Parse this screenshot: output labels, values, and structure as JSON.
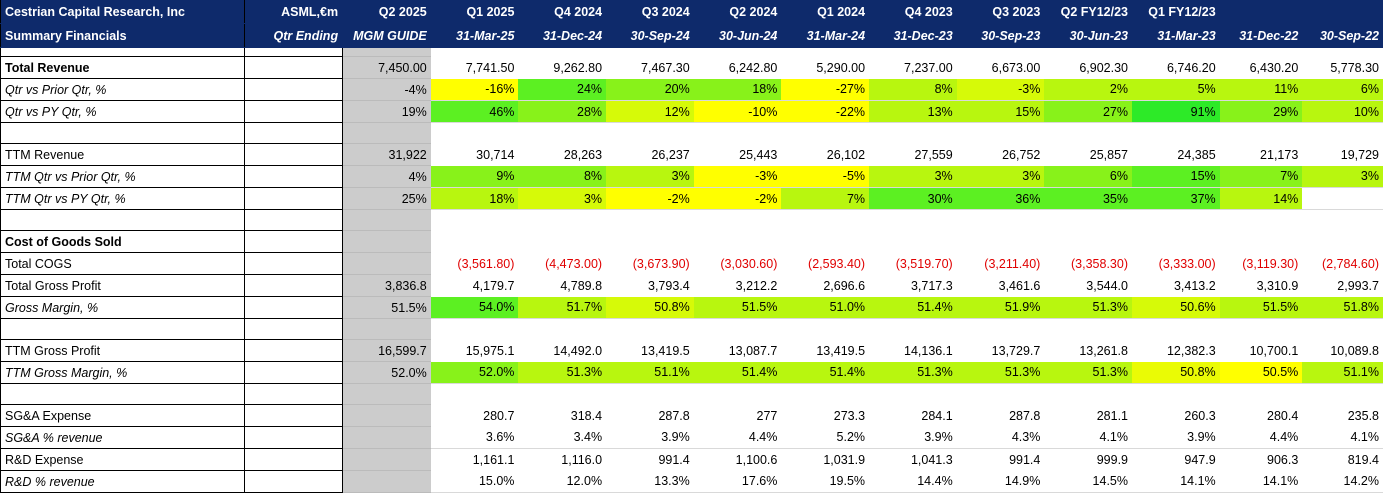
{
  "header": {
    "row1": [
      "Cestrian Capital Research, Inc",
      "ASML,€m",
      "Q2 2025",
      "Q1 2025",
      "Q4 2024",
      "Q3 2024",
      "Q2 2024",
      "Q1 2024",
      "Q4 2023",
      "Q3 2023",
      "Q2 FY12/23",
      "Q1 FY12/23",
      "",
      ""
    ],
    "row2": [
      "Summary Financials",
      "Qtr Ending",
      "MGM GUIDE",
      "31-Mar-25",
      "31-Dec-24",
      "30-Sep-24",
      "30-Jun-24",
      "31-Mar-24",
      "31-Dec-23",
      "30-Sep-23",
      "30-Jun-23",
      "31-Mar-23",
      "31-Dec-22",
      "30-Sep-22"
    ]
  },
  "rows": [
    {
      "label": "Total Revenue",
      "style": "b",
      "guide": "7,450.00",
      "values": [
        "7,741.50",
        "9,262.80",
        "7,467.30",
        "6,242.80",
        "5,290.00",
        "7,237.00",
        "6,673.00",
        "6,902.30",
        "6,746.20",
        "6,430.20",
        "5,778.30"
      ],
      "colors": []
    },
    {
      "label": "Qtr vs Prior Qtr, %",
      "style": "i",
      "guide": "-4%",
      "values": [
        "-16%",
        "24%",
        "20%",
        "18%",
        "-27%",
        "8%",
        "-3%",
        "2%",
        "5%",
        "11%",
        "6%"
      ],
      "colors": [
        "y",
        "g1",
        "g2",
        "g2",
        "y",
        "g3",
        "g4",
        "g3",
        "g3",
        "g3",
        "g3"
      ]
    },
    {
      "label": "Qtr vs PY Qtr, %",
      "style": "i",
      "guide": "19%",
      "values": [
        "46%",
        "28%",
        "12%",
        "-10%",
        "-22%",
        "13%",
        "15%",
        "27%",
        "91%",
        "29%",
        "10%"
      ],
      "colors": [
        "g1",
        "g2",
        "g4",
        "y",
        "y",
        "g3",
        "g3",
        "g2",
        "g0",
        "g2",
        "g3"
      ]
    },
    {
      "blank": true
    },
    {
      "label": " TTM Revenue",
      "style": "",
      "guide": "31,922",
      "values": [
        "30,714",
        "28,263",
        "26,237",
        "25,443",
        "26,102",
        "27,559",
        "26,752",
        "25,857",
        "24,385",
        "21,173",
        "19,729"
      ],
      "colors": []
    },
    {
      "label": "TTM Qtr vs Prior Qtr, %",
      "style": "i",
      "guide": "4%",
      "values": [
        "9%",
        "8%",
        "3%",
        "-3%",
        "-5%",
        "3%",
        "3%",
        "6%",
        "15%",
        "7%",
        "3%"
      ],
      "colors": [
        "g2",
        "g2",
        "g3",
        "y",
        "y",
        "g3",
        "g3",
        "g2",
        "g1",
        "g2",
        "g3"
      ]
    },
    {
      "label": "TTM Qtr vs PY Qtr, %",
      "style": "i",
      "guide": "25%",
      "values": [
        "18%",
        "3%",
        "-2%",
        "-2%",
        "7%",
        "30%",
        "36%",
        "35%",
        "37%",
        "14%",
        ""
      ],
      "colors": [
        "g3",
        "g4",
        "y",
        "y",
        "g3",
        "g1",
        "g1",
        "g1",
        "g1",
        "g3",
        ""
      ]
    },
    {
      "blank": true
    },
    {
      "label": "Cost of Goods Sold",
      "style": "b",
      "guide": "",
      "values": [
        "",
        "",
        "",
        "",
        "",
        "",
        "",
        "",
        "",
        "",
        ""
      ],
      "colors": []
    },
    {
      "label": "Total COGS",
      "style": "",
      "guide": "",
      "neg": true,
      "values": [
        "(3,561.80)",
        "(4,473.00)",
        "(3,673.90)",
        "(3,030.60)",
        "(2,593.40)",
        "(3,519.70)",
        "(3,211.40)",
        "(3,358.30)",
        "(3,333.00)",
        "(3,119.30)",
        "(2,784.60)"
      ],
      "colors": []
    },
    {
      "label": "Total Gross Profit",
      "style": "",
      "guide": "3,836.8",
      "values": [
        "4,179.7",
        "4,789.8",
        "3,793.4",
        "3,212.2",
        "2,696.6",
        "3,717.3",
        "3,461.6",
        "3,544.0",
        "3,413.2",
        "3,310.9",
        "2,993.7"
      ],
      "colors": []
    },
    {
      "label": "Gross Margin, %",
      "style": "i",
      "guide": "51.5%",
      "values": [
        "54.0%",
        "51.7%",
        "50.8%",
        "51.5%",
        "51.0%",
        "51.4%",
        "51.9%",
        "51.3%",
        "50.6%",
        "51.5%",
        "51.8%"
      ],
      "colors": [
        "g1",
        "g3",
        "g4",
        "g3",
        "g3",
        "g3",
        "g3",
        "g3",
        "g4",
        "g3",
        "g3"
      ]
    },
    {
      "blank": true
    },
    {
      "label": "TTM Gross Profit",
      "style": "",
      "guide": "16,599.7",
      "values": [
        "15,975.1",
        "14,492.0",
        "13,419.5",
        "13,087.7",
        "13,419.5",
        "14,136.1",
        "13,729.7",
        "13,261.8",
        "12,382.3",
        "10,700.1",
        "10,089.8"
      ],
      "colors": []
    },
    {
      "label": "TTM Gross Margin, %",
      "style": "i",
      "guide": "52.0%",
      "values": [
        "52.0%",
        "51.3%",
        "51.1%",
        "51.4%",
        "51.4%",
        "51.3%",
        "51.3%",
        "51.3%",
        "50.8%",
        "50.5%",
        "51.1%"
      ],
      "colors": [
        "g2",
        "g3",
        "g3",
        "g3",
        "g3",
        "g3",
        "g3",
        "g3",
        "ly",
        "y",
        "g3"
      ]
    },
    {
      "blank": true
    },
    {
      "label": "SG&A Expense",
      "style": "",
      "guide": "",
      "values": [
        "280.7",
        "318.4",
        "287.8",
        "277",
        "273.3",
        "284.1",
        "287.8",
        "281.1",
        "260.3",
        "280.4",
        "235.8"
      ],
      "colors": []
    },
    {
      "label": "SG&A % revenue",
      "style": "i",
      "guide": "",
      "values": [
        "3.6%",
        "3.4%",
        "3.9%",
        "4.4%",
        "5.2%",
        "3.9%",
        "4.3%",
        "4.1%",
        "3.9%",
        "4.4%",
        "4.1%"
      ],
      "colors": []
    },
    {
      "label": "R&D Expense",
      "style": "",
      "guide": "",
      "values": [
        "1,161.1",
        "1,116.0",
        "991.4",
        "1,100.6",
        "1,031.9",
        "1,041.3",
        "991.4",
        "999.9",
        "947.9",
        "906.3",
        "819.4"
      ],
      "colors": []
    },
    {
      "label": "R&D % revenue",
      "style": "i",
      "guide": "",
      "values": [
        "15.0%",
        "12.0%",
        "13.3%",
        "17.6%",
        "19.5%",
        "14.4%",
        "14.9%",
        "14.5%",
        "14.1%",
        "14.1%",
        "14.2%"
      ],
      "colors": []
    }
  ]
}
